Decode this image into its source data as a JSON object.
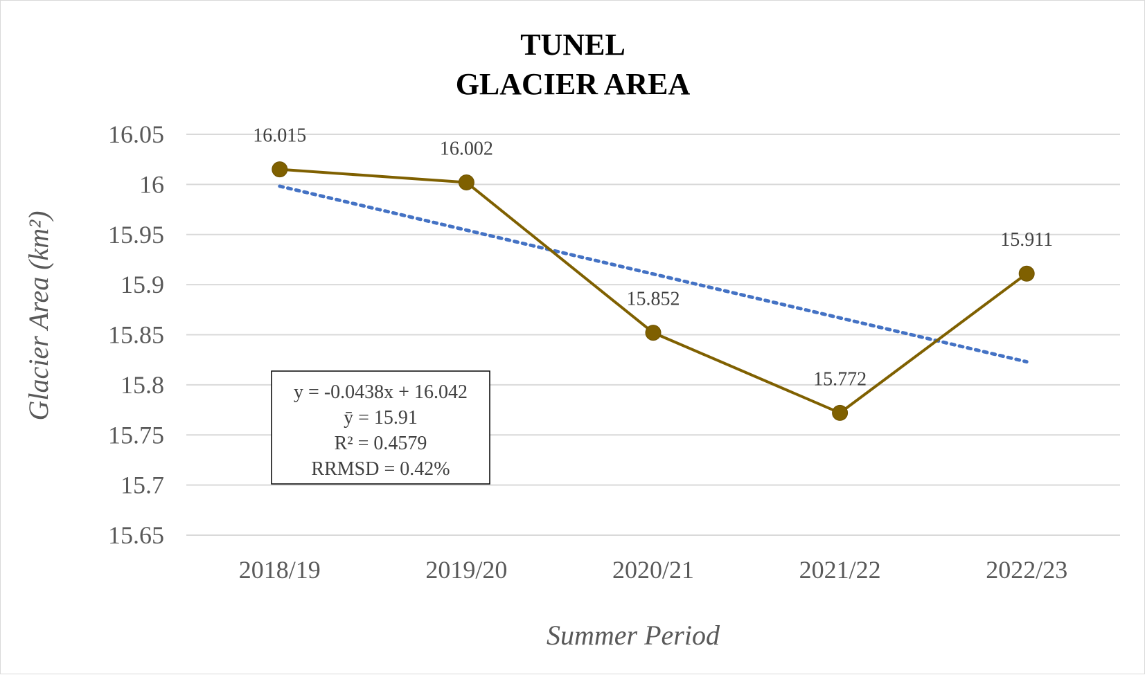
{
  "chart_data": {
    "type": "line",
    "title": [
      "TUNEL",
      "GLACIER AREA"
    ],
    "xlabel": "Summer Period",
    "ylabel": "Glacier Area (km²)",
    "categories": [
      "2018/19",
      "2019/20",
      "2020/21",
      "2021/22",
      "2022/23"
    ],
    "series": [
      {
        "values": [
          16.015,
          16.002,
          15.852,
          15.772,
          15.911
        ],
        "color": "#7f6000"
      }
    ],
    "data_labels": [
      "16.015",
      "16.002",
      "15.852",
      "15.772",
      "15.911"
    ],
    "trendline": {
      "type": "linear",
      "slope": -0.0438,
      "intercept": 16.042,
      "color": "#4472c4",
      "style": "dotted"
    },
    "ylim": [
      15.65,
      16.05
    ],
    "yticks": [
      "15.65",
      "15.7",
      "15.75",
      "15.8",
      "15.85",
      "15.9",
      "15.95",
      "16",
      "16.05"
    ],
    "grid": true,
    "legend": false,
    "annotation_box": [
      "y = -0.0438x + 16.042",
      "ȳ = 15.91",
      "R² = 0.4579",
      "RRMSD = 0.42%"
    ]
  }
}
